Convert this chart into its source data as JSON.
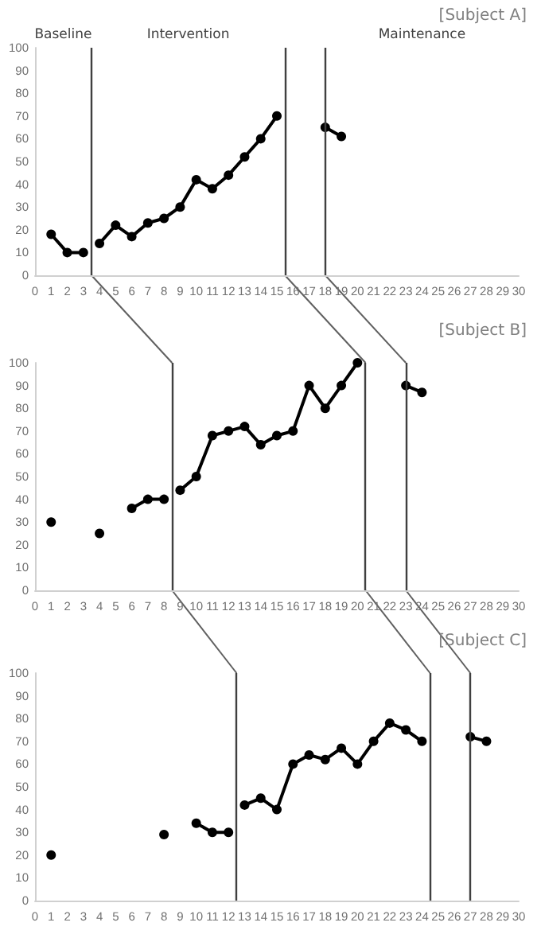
{
  "chart_data": [
    {
      "type": "line",
      "title": "[Subject A]",
      "annotations": [
        "Baseline",
        "Intervention",
        "Maintenance"
      ],
      "marker": "circle",
      "line_style": "solid",
      "grid": false,
      "xlim": [
        0,
        30
      ],
      "xticks": [
        0,
        1,
        2,
        3,
        4,
        5,
        6,
        7,
        8,
        9,
        10,
        11,
        12,
        13,
        14,
        15,
        16,
        17,
        18,
        19,
        20,
        21,
        22,
        23,
        24,
        25,
        26,
        27,
        28,
        29,
        30
      ],
      "ylim": [
        0,
        100
      ],
      "yticks": [
        0,
        10,
        20,
        30,
        40,
        50,
        60,
        70,
        80,
        90,
        100
      ],
      "series": [
        {
          "color": "#000000",
          "x": [
            1,
            2,
            3
          ],
          "values": [
            18,
            10,
            10
          ]
        },
        {
          "color": "#000000",
          "x": [
            4,
            5,
            6,
            7,
            8,
            9,
            10,
            11,
            12,
            13,
            14,
            15
          ],
          "values": [
            14,
            22,
            17,
            23,
            25,
            30,
            42,
            38,
            44,
            52,
            60,
            70
          ]
        },
        {
          "color": "#000000",
          "x": [
            18,
            19
          ],
          "values": [
            65,
            61
          ]
        }
      ],
      "ref_lines": [
        {
          "axis": "x",
          "value": 3.5,
          "color": "#404040"
        },
        {
          "axis": "x",
          "value": 15.5,
          "color": "#404040"
        },
        {
          "axis": "x",
          "value": 18,
          "color": "#404040"
        }
      ]
    },
    {
      "type": "line",
      "title": "[Subject B]",
      "marker": "circle",
      "line_style": "solid",
      "grid": false,
      "xlim": [
        0,
        30
      ],
      "xticks": [
        0,
        1,
        2,
        3,
        4,
        5,
        6,
        7,
        8,
        9,
        10,
        11,
        12,
        13,
        14,
        15,
        16,
        17,
        18,
        19,
        20,
        21,
        22,
        23,
        24,
        25,
        26,
        27,
        28,
        29,
        30
      ],
      "ylim": [
        0,
        100
      ],
      "yticks": [
        0,
        10,
        20,
        30,
        40,
        50,
        60,
        70,
        80,
        90,
        100
      ],
      "series": [
        {
          "color": "#000000",
          "x": [
            1
          ],
          "values": [
            30
          ]
        },
        {
          "color": "#000000",
          "x": [
            4
          ],
          "values": [
            25
          ]
        },
        {
          "color": "#000000",
          "x": [
            6,
            7,
            8
          ],
          "values": [
            36,
            40,
            40
          ]
        },
        {
          "color": "#000000",
          "x": [
            9,
            10,
            11,
            12,
            13,
            14,
            15,
            16,
            17,
            18,
            19,
            20
          ],
          "values": [
            44,
            50,
            68,
            70,
            72,
            64,
            68,
            70,
            90,
            80,
            90,
            100
          ]
        },
        {
          "color": "#000000",
          "x": [
            23,
            24
          ],
          "values": [
            90,
            87
          ]
        }
      ],
      "ref_lines": [
        {
          "axis": "x",
          "value": 8.5,
          "color": "#404040"
        },
        {
          "axis": "x",
          "value": 20.5,
          "color": "#404040"
        },
        {
          "axis": "x",
          "value": 23,
          "color": "#404040"
        }
      ]
    },
    {
      "type": "line",
      "title": "[Subject C]",
      "marker": "circle",
      "line_style": "solid",
      "grid": false,
      "xlim": [
        0,
        30
      ],
      "xticks": [
        0,
        1,
        2,
        3,
        4,
        5,
        6,
        7,
        8,
        9,
        10,
        11,
        12,
        13,
        14,
        15,
        16,
        17,
        18,
        19,
        20,
        21,
        22,
        23,
        24,
        25,
        26,
        27,
        28,
        29,
        30
      ],
      "ylim": [
        0,
        100
      ],
      "yticks": [
        0,
        10,
        20,
        30,
        40,
        50,
        60,
        70,
        80,
        90,
        100
      ],
      "series": [
        {
          "color": "#000000",
          "x": [
            1
          ],
          "values": [
            20
          ]
        },
        {
          "color": "#000000",
          "x": [
            8
          ],
          "values": [
            29
          ]
        },
        {
          "color": "#000000",
          "x": [
            10,
            11,
            12
          ],
          "values": [
            34,
            30,
            30
          ]
        },
        {
          "color": "#000000",
          "x": [
            13,
            14,
            15,
            16,
            17,
            18,
            19,
            20,
            21,
            22,
            23,
            24
          ],
          "values": [
            42,
            45,
            40,
            60,
            64,
            62,
            67,
            60,
            70,
            78,
            75,
            70
          ]
        },
        {
          "color": "#000000",
          "x": [
            27,
            28
          ],
          "values": [
            72,
            70
          ]
        }
      ],
      "ref_lines": [
        {
          "axis": "x",
          "value": 12.5,
          "color": "#404040"
        },
        {
          "axis": "x",
          "value": 24.5,
          "color": "#404040"
        },
        {
          "axis": "x",
          "value": 27,
          "color": "#404040"
        }
      ]
    }
  ]
}
